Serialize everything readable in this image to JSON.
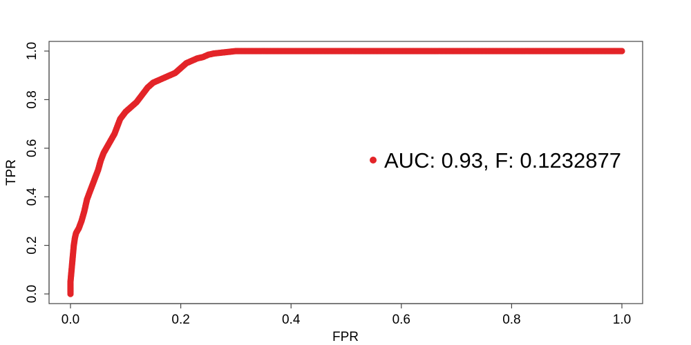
{
  "chart_data": {
    "type": "scatter",
    "xlabel": "FPR",
    "ylabel": "TPR",
    "xlim": [
      0.0,
      1.0
    ],
    "ylim": [
      0.0,
      1.0
    ],
    "x_ticks": [
      "0.0",
      "0.2",
      "0.4",
      "0.6",
      "0.8",
      "1.0"
    ],
    "y_ticks": [
      "0.0",
      "0.2",
      "0.4",
      "0.6",
      "0.8",
      "1.0"
    ],
    "grid": false,
    "legend_position": "right",
    "color": "#e32428",
    "series": [
      {
        "name": "AUC: 0.93, F: 0.1232877",
        "x": [
          0.0,
          0.0,
          0.002,
          0.004,
          0.006,
          0.008,
          0.01,
          0.015,
          0.02,
          0.025,
          0.03,
          0.035,
          0.04,
          0.045,
          0.05,
          0.055,
          0.06,
          0.065,
          0.07,
          0.075,
          0.08,
          0.085,
          0.09,
          0.1,
          0.11,
          0.12,
          0.13,
          0.14,
          0.15,
          0.16,
          0.17,
          0.18,
          0.19,
          0.2,
          0.21,
          0.22,
          0.23,
          0.24,
          0.25,
          0.26,
          0.28,
          0.3,
          0.32,
          0.35,
          0.4,
          0.5,
          0.6,
          0.7,
          0.8,
          0.9,
          1.0
        ],
        "y": [
          0.0,
          0.05,
          0.1,
          0.15,
          0.2,
          0.23,
          0.25,
          0.27,
          0.3,
          0.34,
          0.39,
          0.42,
          0.45,
          0.48,
          0.51,
          0.55,
          0.58,
          0.6,
          0.62,
          0.64,
          0.66,
          0.69,
          0.72,
          0.75,
          0.77,
          0.79,
          0.82,
          0.85,
          0.87,
          0.88,
          0.89,
          0.9,
          0.91,
          0.93,
          0.95,
          0.96,
          0.97,
          0.975,
          0.985,
          0.99,
          0.995,
          1.0,
          1.0,
          1.0,
          1.0,
          1.0,
          1.0,
          1.0,
          1.0,
          1.0,
          1.0
        ]
      }
    ]
  }
}
